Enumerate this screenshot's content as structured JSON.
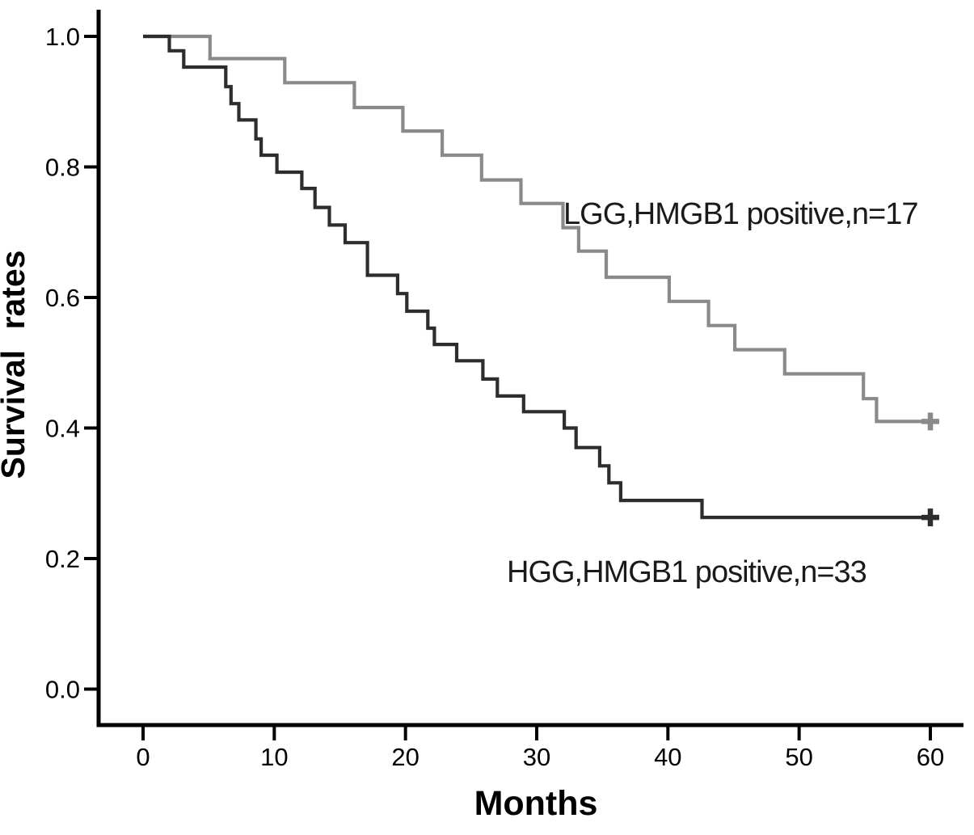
{
  "figure": {
    "background_color": "#ffffff",
    "axis_color": "#000000",
    "text_color": "#000000"
  },
  "chart_data": {
    "type": "line",
    "subtype": "kaplan_meier_step_survival",
    "title": "",
    "xlabel": "Months",
    "ylabel": "Survival rates",
    "grid": false,
    "legend_position": "inline-annotations",
    "xlim": [
      0,
      62.5
    ],
    "ylim": [
      0,
      1.05
    ],
    "x_tick_labels": [
      "0",
      "10",
      "20",
      "30",
      "40",
      "50",
      "60"
    ],
    "x_tick_values": [
      0,
      10,
      20,
      30,
      40,
      50,
      60
    ],
    "y_tick_labels": [
      "0.0",
      "0.2",
      "0.4",
      "0.6",
      "0.8",
      "1.0"
    ],
    "y_tick_values": [
      0.0,
      0.2,
      0.4,
      0.6,
      0.8,
      1.0
    ],
    "series": [
      {
        "name": "LGG,HMGB1 positive,n=17",
        "group": "LGG",
        "marker": "HMGB1 positive",
        "n": 17,
        "color": "#8a8a8a",
        "end_x": 60.5,
        "censor_marks": [
          [
            60,
            0.41
          ]
        ],
        "steps": [
          [
            0,
            1.0
          ],
          [
            5.1,
            0.966
          ],
          [
            10.8,
            0.929
          ],
          [
            16.1,
            0.891
          ],
          [
            19.8,
            0.855
          ],
          [
            22.8,
            0.818
          ],
          [
            25.8,
            0.78
          ],
          [
            28.8,
            0.744
          ],
          [
            32.0,
            0.707
          ],
          [
            33.2,
            0.671
          ],
          [
            35.3,
            0.631
          ],
          [
            40.1,
            0.594
          ],
          [
            43.1,
            0.557
          ],
          [
            45.1,
            0.52
          ],
          [
            48.9,
            0.483
          ],
          [
            54.9,
            0.445
          ],
          [
            55.9,
            0.41
          ]
        ]
      },
      {
        "name": "HGG,HMGB1 positive,n=33",
        "group": "HGG",
        "marker": "HMGB1 positive",
        "n": 33,
        "color": "#2d2d2d",
        "end_x": 60.6,
        "censor_marks": [
          [
            60,
            0.263
          ]
        ],
        "steps": [
          [
            0,
            1.0
          ],
          [
            2.0,
            0.978
          ],
          [
            3.1,
            0.953
          ],
          [
            6.3,
            0.923
          ],
          [
            6.7,
            0.897
          ],
          [
            7.3,
            0.872
          ],
          [
            8.6,
            0.843
          ],
          [
            9.0,
            0.818
          ],
          [
            10.2,
            0.792
          ],
          [
            12.1,
            0.767
          ],
          [
            13.1,
            0.738
          ],
          [
            14.2,
            0.711
          ],
          [
            15.4,
            0.684
          ],
          [
            17.1,
            0.634
          ],
          [
            19.4,
            0.606
          ],
          [
            20.1,
            0.579
          ],
          [
            21.7,
            0.553
          ],
          [
            22.2,
            0.528
          ],
          [
            23.9,
            0.503
          ],
          [
            25.9,
            0.475
          ],
          [
            27.0,
            0.449
          ],
          [
            29.0,
            0.425
          ],
          [
            32.1,
            0.4
          ],
          [
            33.0,
            0.37
          ],
          [
            34.8,
            0.342
          ],
          [
            35.5,
            0.316
          ],
          [
            36.4,
            0.289
          ],
          [
            42.6,
            0.263
          ]
        ]
      }
    ]
  }
}
